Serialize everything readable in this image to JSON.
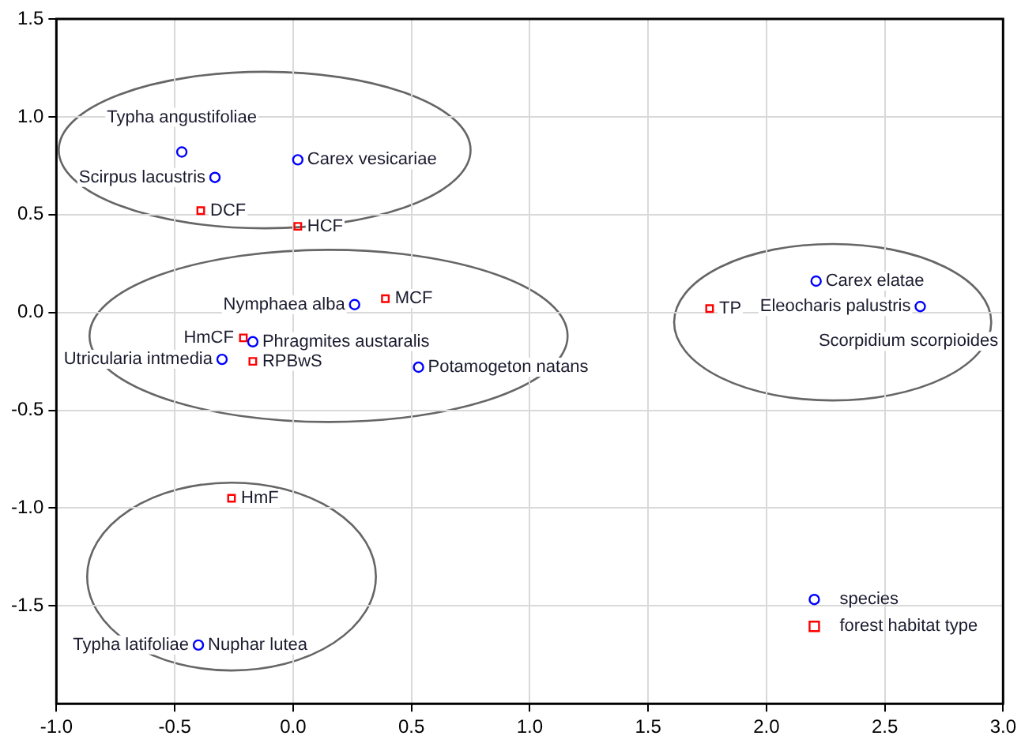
{
  "chart_data": {
    "type": "scatter",
    "xlim": [
      -1,
      3
    ],
    "ylim": [
      -2,
      1.5
    ],
    "xticks": [
      {
        "value": -1,
        "label": "-1.0"
      },
      {
        "value": -0.5,
        "label": "-0.5"
      },
      {
        "value": 0,
        "label": "0.0"
      },
      {
        "value": 0.5,
        "label": "0.5"
      },
      {
        "value": 1,
        "label": "1.0"
      },
      {
        "value": 1.5,
        "label": "1.5"
      },
      {
        "value": 2,
        "label": "2.0"
      },
      {
        "value": 2.5,
        "label": "2.5"
      },
      {
        "value": 3,
        "label": "3.0"
      }
    ],
    "yticks": [
      {
        "value": -1.5,
        "label": "-1.5"
      },
      {
        "value": -1,
        "label": "-1.0"
      },
      {
        "value": -0.5,
        "label": "-0.5"
      },
      {
        "value": 0,
        "label": "0.0"
      },
      {
        "value": 0.5,
        "label": "0.5"
      },
      {
        "value": 1,
        "label": "1.0"
      },
      {
        "value": 1.5,
        "label": "1.5"
      }
    ],
    "grid": true,
    "legend": "bottom right",
    "series": [
      {
        "name": "species",
        "color": "#0000ff",
        "marker": "circle",
        "x": [
          -0.47,
          -0.33,
          0.02,
          0.26,
          -0.17,
          -0.3,
          0.53,
          2.21,
          2.65,
          -0.4
        ],
        "values": [
          0.82,
          0.69,
          0.78,
          0.04,
          -0.15,
          -0.24,
          -0.28,
          0.16,
          0.03,
          -1.7
        ]
      },
      {
        "name": "forest habitat type",
        "color": "#ff0000",
        "marker": "square",
        "x": [
          -0.39,
          0.02,
          0.39,
          -0.21,
          -0.17,
          1.76,
          -0.26
        ],
        "values": [
          0.52,
          0.44,
          0.07,
          -0.13,
          -0.25,
          0.02,
          -0.95
        ]
      }
    ],
    "annotations": [
      {
        "text": "Typha angustifoliae",
        "x": -0.47,
        "y": 0.82
      },
      {
        "text": "Carex vesicariae",
        "x": 0.02,
        "y": 0.78
      },
      {
        "text": "Scirpus lacustris",
        "x": -0.33,
        "y": 0.69
      },
      {
        "text": "DCF",
        "x": -0.39,
        "y": 0.52
      },
      {
        "text": "HCF",
        "x": 0.02,
        "y": 0.44
      },
      {
        "text": "Nymphaea alba",
        "x": 0.26,
        "y": 0.04
      },
      {
        "text": "MCF",
        "x": 0.39,
        "y": 0.07
      },
      {
        "text": "Phragmites austaralis",
        "x": -0.17,
        "y": -0.15
      },
      {
        "text": "HmCF",
        "x": -0.21,
        "y": -0.13
      },
      {
        "text": "RPBwS",
        "x": -0.17,
        "y": -0.25
      },
      {
        "text": "Utricularia intmedia",
        "x": -0.3,
        "y": -0.24
      },
      {
        "text": "Potamogeton natans",
        "x": 0.53,
        "y": -0.28
      },
      {
        "text": "TP",
        "x": 1.76,
        "y": 0.02
      },
      {
        "text": "Carex elatae",
        "x": 2.21,
        "y": 0.16
      },
      {
        "text": "Eleocharis palustris",
        "x": 2.65,
        "y": 0.03
      },
      {
        "text": "Scorpidium scorpioides",
        "x": 2.65,
        "y": 0.03
      },
      {
        "text": "HmF",
        "x": -0.26,
        "y": -0.95
      },
      {
        "text": "Nuphar lutea",
        "x": -0.4,
        "y": -1.7
      },
      {
        "text": "Typha latifoliae",
        "x": -0.4,
        "y": -1.7
      }
    ]
  }
}
